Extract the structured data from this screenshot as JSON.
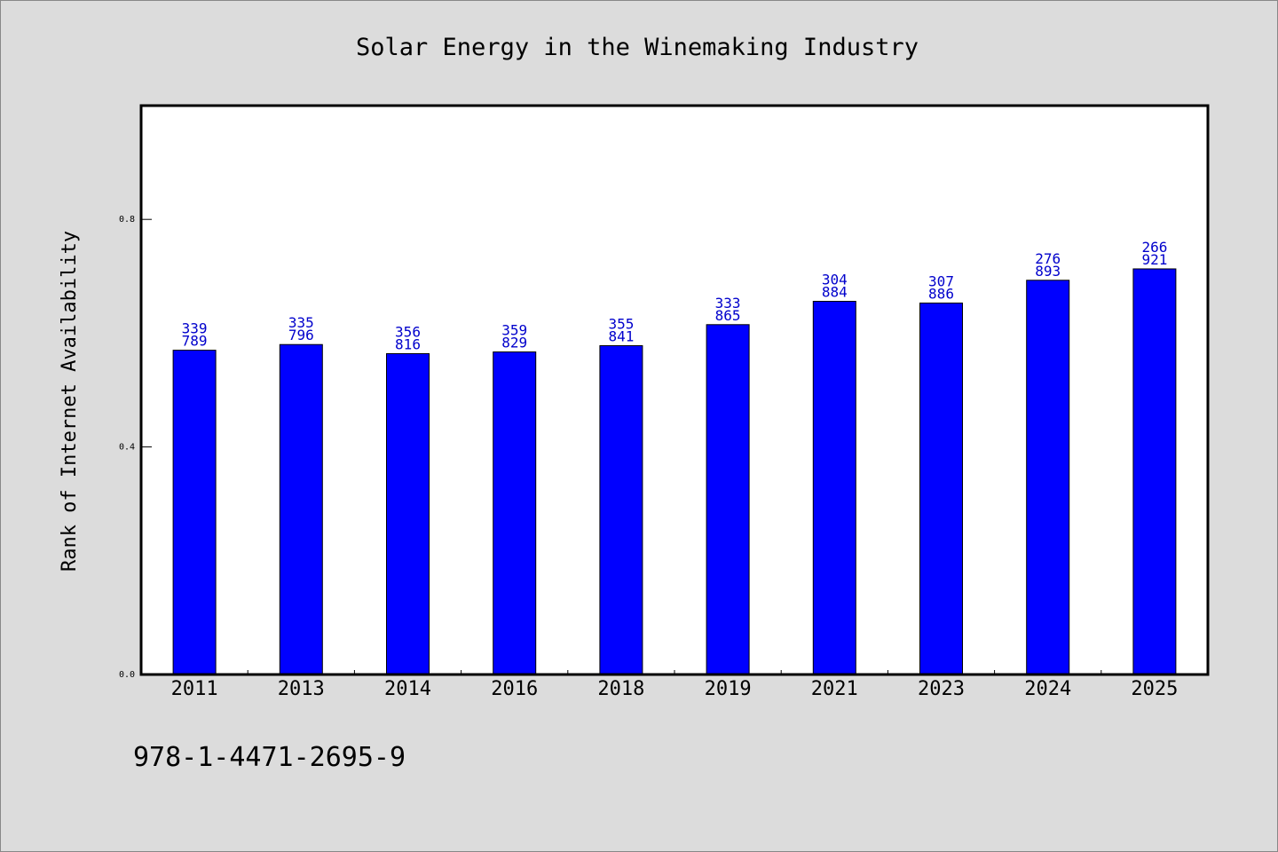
{
  "chart_data": {
    "type": "bar",
    "title": "Solar Energy in the Winemaking Industry",
    "xlabel": "",
    "ylabel": "Rank of Internet Availability",
    "ylim": [
      0,
      1.0
    ],
    "yticks": [
      0.0,
      0.4,
      0.8
    ],
    "ytick_labels": [
      "0.0",
      "0.4",
      "0.8"
    ],
    "categories": [
      "2011",
      "2013",
      "2014",
      "2016",
      "2018",
      "2019",
      "2021",
      "2023",
      "2024",
      "2025"
    ],
    "values": [
      0.57,
      0.58,
      0.564,
      0.567,
      0.578,
      0.615,
      0.656,
      0.653,
      0.693,
      0.713
    ],
    "label_top": [
      "339",
      "335",
      "356",
      "359",
      "355",
      "333",
      "304",
      "307",
      "276",
      "266"
    ],
    "label_bottom": [
      "789",
      "796",
      "816",
      "829",
      "841",
      "865",
      "884",
      "886",
      "893",
      "921"
    ],
    "grid": false,
    "legend": "none",
    "bar_color": "#0000ff",
    "label_color": "#0000cc"
  },
  "footer_text": "978-1-4471-2695-9",
  "colors": {
    "background": "#dcdcdc",
    "plot_background": "#ffffff",
    "axis": "#000000"
  }
}
